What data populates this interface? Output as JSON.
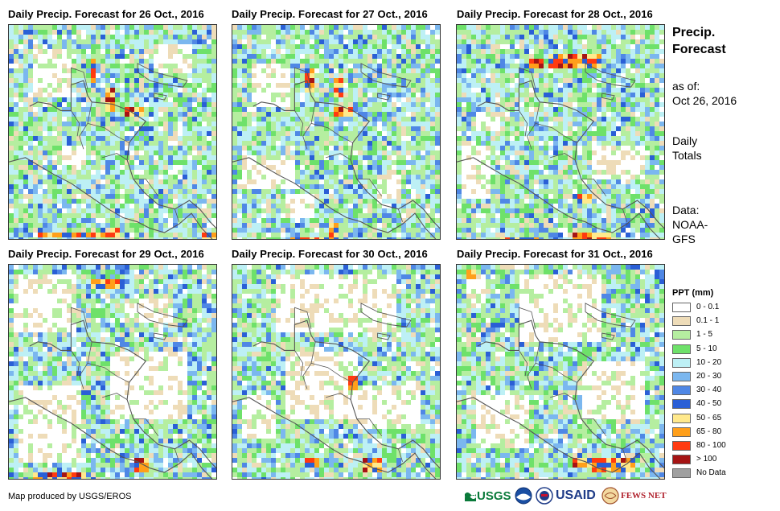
{
  "panels": [
    {
      "title": "Daily Precip. Forecast for 26 Oct., 2016",
      "heavy": [
        [
          0.55,
          0.37,
          0.09,
          0.05
        ],
        [
          0.47,
          0.3,
          0.04,
          0.1
        ],
        [
          0.4,
          0.15,
          0.03,
          0.12
        ],
        [
          0.48,
          0.93,
          0.06,
          0.05
        ],
        [
          0.15,
          0.95,
          0.35,
          0.03
        ],
        [
          0.92,
          0.95,
          0.08,
          0.05
        ]
      ],
      "dry": [
        [
          0.12,
          0.12,
          0.18,
          0.22
        ],
        [
          0.7,
          0.1,
          0.18,
          0.12
        ],
        [
          0.25,
          0.55,
          0.12,
          0.1
        ]
      ]
    },
    {
      "title": "Daily Precip. Forecast for 27 Oct., 2016",
      "heavy": [
        [
          0.5,
          0.38,
          0.08,
          0.05
        ],
        [
          0.48,
          0.25,
          0.05,
          0.08
        ],
        [
          0.36,
          0.2,
          0.04,
          0.1
        ],
        [
          0.46,
          0.92,
          0.06,
          0.07
        ],
        [
          0.28,
          0.97,
          0.2,
          0.03
        ]
      ],
      "dry": [
        [
          0.1,
          0.18,
          0.18,
          0.2
        ],
        [
          0.05,
          0.6,
          0.25,
          0.15
        ],
        [
          0.25,
          0.78,
          0.15,
          0.1
        ],
        [
          0.7,
          0.7,
          0.12,
          0.1
        ]
      ]
    },
    {
      "title": "Daily Precip. Forecast for 28 Oct., 2016",
      "heavy": [
        [
          0.45,
          0.13,
          0.25,
          0.06
        ],
        [
          0.35,
          0.15,
          0.08,
          0.05
        ],
        [
          0.58,
          0.78,
          0.06,
          0.05
        ],
        [
          0.55,
          0.95,
          0.2,
          0.04
        ],
        [
          0.2,
          0.97,
          0.2,
          0.03
        ]
      ],
      "dry": [
        [
          0.02,
          0.55,
          0.15,
          0.25
        ],
        [
          0.65,
          0.55,
          0.25,
          0.15
        ],
        [
          0.1,
          0.4,
          0.1,
          0.08
        ]
      ]
    },
    {
      "title": "Daily Precip. Forecast for 29 Oct., 2016",
      "heavy": [
        [
          0.4,
          0.06,
          0.15,
          0.04
        ],
        [
          0.6,
          0.9,
          0.08,
          0.06
        ],
        [
          0.12,
          0.96,
          0.25,
          0.03
        ]
      ],
      "dry": [
        [
          0.02,
          0.05,
          0.3,
          0.25
        ],
        [
          0.5,
          0.4,
          0.35,
          0.3
        ],
        [
          0.05,
          0.55,
          0.3,
          0.35
        ],
        [
          0.55,
          0.15,
          0.25,
          0.12
        ]
      ]
    },
    {
      "title": "Daily Precip. Forecast for 30 Oct., 2016",
      "heavy": [
        [
          0.55,
          0.52,
          0.05,
          0.06
        ],
        [
          0.62,
          0.9,
          0.1,
          0.06
        ],
        [
          0.35,
          0.88,
          0.06,
          0.05
        ]
      ],
      "dry": [
        [
          0.2,
          0.05,
          0.6,
          0.25
        ],
        [
          0.25,
          0.4,
          0.35,
          0.3
        ],
        [
          0.6,
          0.55,
          0.3,
          0.2
        ],
        [
          0.05,
          0.6,
          0.15,
          0.2
        ]
      ]
    },
    {
      "title": "Daily Precip. Forecast for 31 Oct., 2016",
      "heavy": [
        [
          0.55,
          0.88,
          0.3,
          0.06
        ],
        [
          0.65,
          0.92,
          0.2,
          0.04
        ],
        [
          0.04,
          0.02,
          0.05,
          0.05
        ]
      ],
      "dry": [
        [
          0.3,
          0.05,
          0.4,
          0.3
        ],
        [
          0.1,
          0.6,
          0.25,
          0.25
        ],
        [
          0.6,
          0.45,
          0.3,
          0.25
        ],
        [
          0.05,
          0.05,
          0.1,
          0.15
        ]
      ]
    }
  ],
  "side": {
    "title_line1": "Precip.",
    "title_line2": "Forecast",
    "asof_label": "as of:",
    "asof_date": "Oct 26, 2016",
    "totals_line1": "Daily",
    "totals_line2": "Totals",
    "data_line1": "Data:",
    "data_line2": "NOAA-",
    "data_line3": "GFS"
  },
  "legend": {
    "title": "PPT (mm)",
    "classes": [
      {
        "label": "0 - 0.1",
        "color": "#ffffff"
      },
      {
        "label": "0.1 - 1",
        "color": "#eedcb8"
      },
      {
        "label": "1 - 5",
        "color": "#b5eea0"
      },
      {
        "label": "5 - 10",
        "color": "#6ee16a"
      },
      {
        "label": "10 - 20",
        "color": "#bdf0f5"
      },
      {
        "label": "20 - 30",
        "color": "#7bb7ef"
      },
      {
        "label": "30 - 40",
        "color": "#4f87e5"
      },
      {
        "label": "40 - 50",
        "color": "#2a5fd6"
      },
      {
        "label": "50 - 65",
        "color": "#ffe98c"
      },
      {
        "label": "65 - 80",
        "color": "#ff9f1a"
      },
      {
        "label": "80 - 100",
        "color": "#ff3a10"
      },
      {
        "label": "> 100",
        "color": "#a51414"
      },
      {
        "label": "No Data",
        "color": "#a0a0a0"
      }
    ]
  },
  "credit": "Map produced by USGS/EROS",
  "logos": {
    "usgs": "USGS",
    "usaid": "USAID",
    "fewsnet": "FEWS NET"
  }
}
